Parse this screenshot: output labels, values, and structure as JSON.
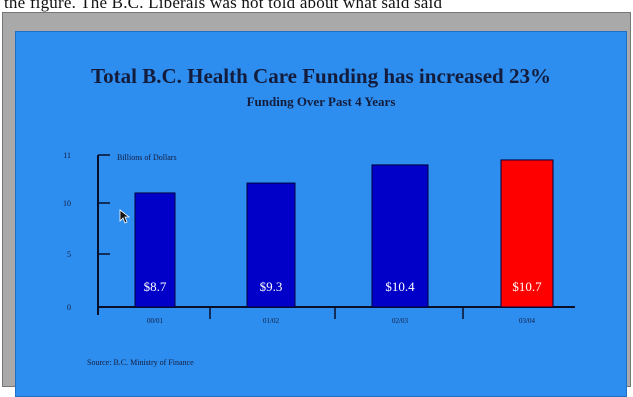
{
  "top_strip_text": "the figure. The B.C. Liberals was not told about what said said",
  "chart_data": {
    "type": "bar",
    "title": "Total B.C. Health Care Funding has increased 23%",
    "subtitle": "Funding Over Past 4 Years",
    "ylabel": "Billions of Dollars",
    "xlabel": "",
    "categories": [
      "00/01",
      "01/02",
      "02/03",
      "03/04"
    ],
    "values": [
      8.7,
      9.3,
      10.4,
      10.7
    ],
    "value_labels": [
      "$8.7",
      "$9.3",
      "$10.4",
      "$10.7"
    ],
    "bar_colors": [
      "#0000c8",
      "#0000c8",
      "#0000c8",
      "#ff0000"
    ],
    "y_axis": {
      "ticks": [
        0,
        5,
        10,
        11
      ],
      "tick_labels": [
        "0",
        "5",
        "10",
        "11"
      ],
      "break_between": [
        0,
        5
      ]
    },
    "grid": false,
    "legend": "none",
    "source": "Source: B.C. Ministry of Finance"
  },
  "colors": {
    "slide_background": "#2d8ef0",
    "frame": "#a9a9a9",
    "text": "#141c3c",
    "axis": "#0a0f28"
  }
}
